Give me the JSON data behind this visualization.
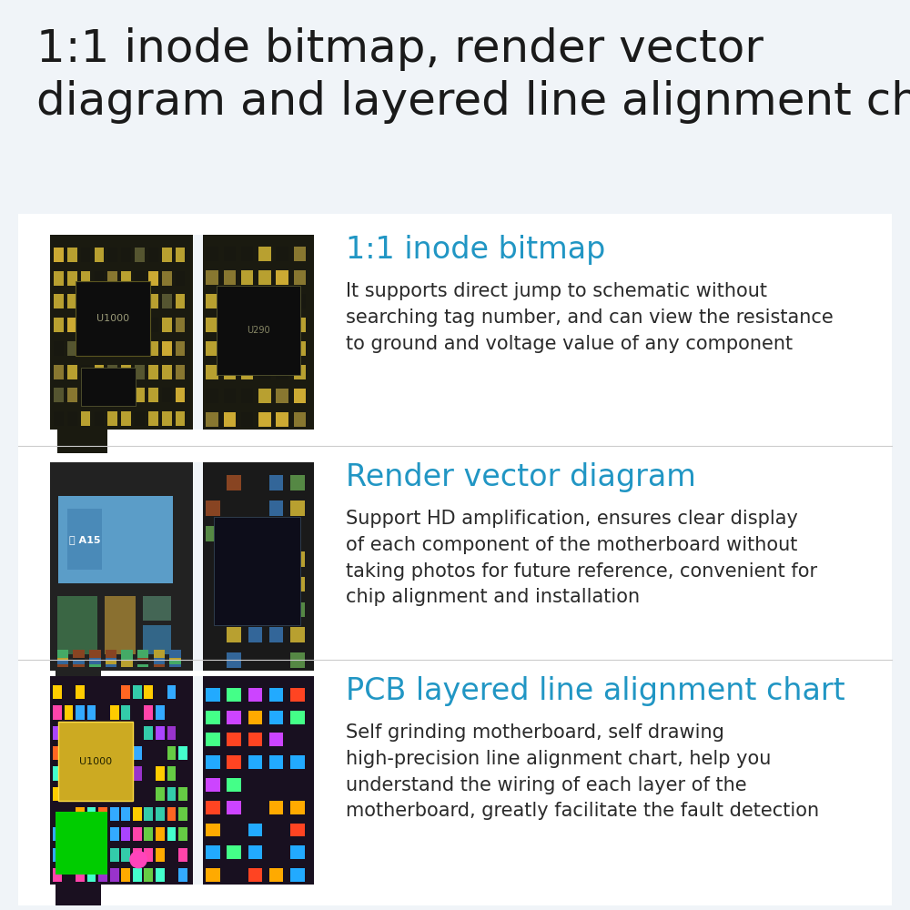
{
  "title_line1": "1:1 inode bitmap, render vector",
  "title_line2": "diagram and layered line alignment chart",
  "title_color": "#1a1a1a",
  "title_fontsize": 36,
  "bg_color": "#f0f4f8",
  "section_bg": "#ffffff",
  "divider_color": "#cccccc",
  "sections": [
    {
      "heading": "1:1 inode bitmap",
      "heading_color": "#2196c4",
      "heading_fontsize": 24,
      "body": "It supports direct jump to schematic without\nsearching tag number, and can view the resistance\nto ground and voltage value of any component",
      "body_color": "#2a2a2a",
      "body_fontsize": 15,
      "pcb_style": "bw"
    },
    {
      "heading": "Render vector diagram",
      "heading_color": "#2196c4",
      "heading_fontsize": 24,
      "body": "Support HD amplification, ensures clear display\nof each component of the motherboard without\ntaking photos for future reference, convenient for\nchip alignment and installation",
      "body_color": "#2a2a2a",
      "body_fontsize": 15,
      "pcb_style": "color"
    },
    {
      "heading": "PCB layered line alignment chart",
      "heading_color": "#2196c4",
      "heading_fontsize": 24,
      "body": "Self grinding motherboard, self drawing\nhigh-precision line alignment chart, help you\nunderstand the wiring of each layer of the\nmotherboard, greatly facilitate the fault detection",
      "body_color": "#2a2a2a",
      "body_fontsize": 15,
      "pcb_style": "thermal"
    }
  ]
}
